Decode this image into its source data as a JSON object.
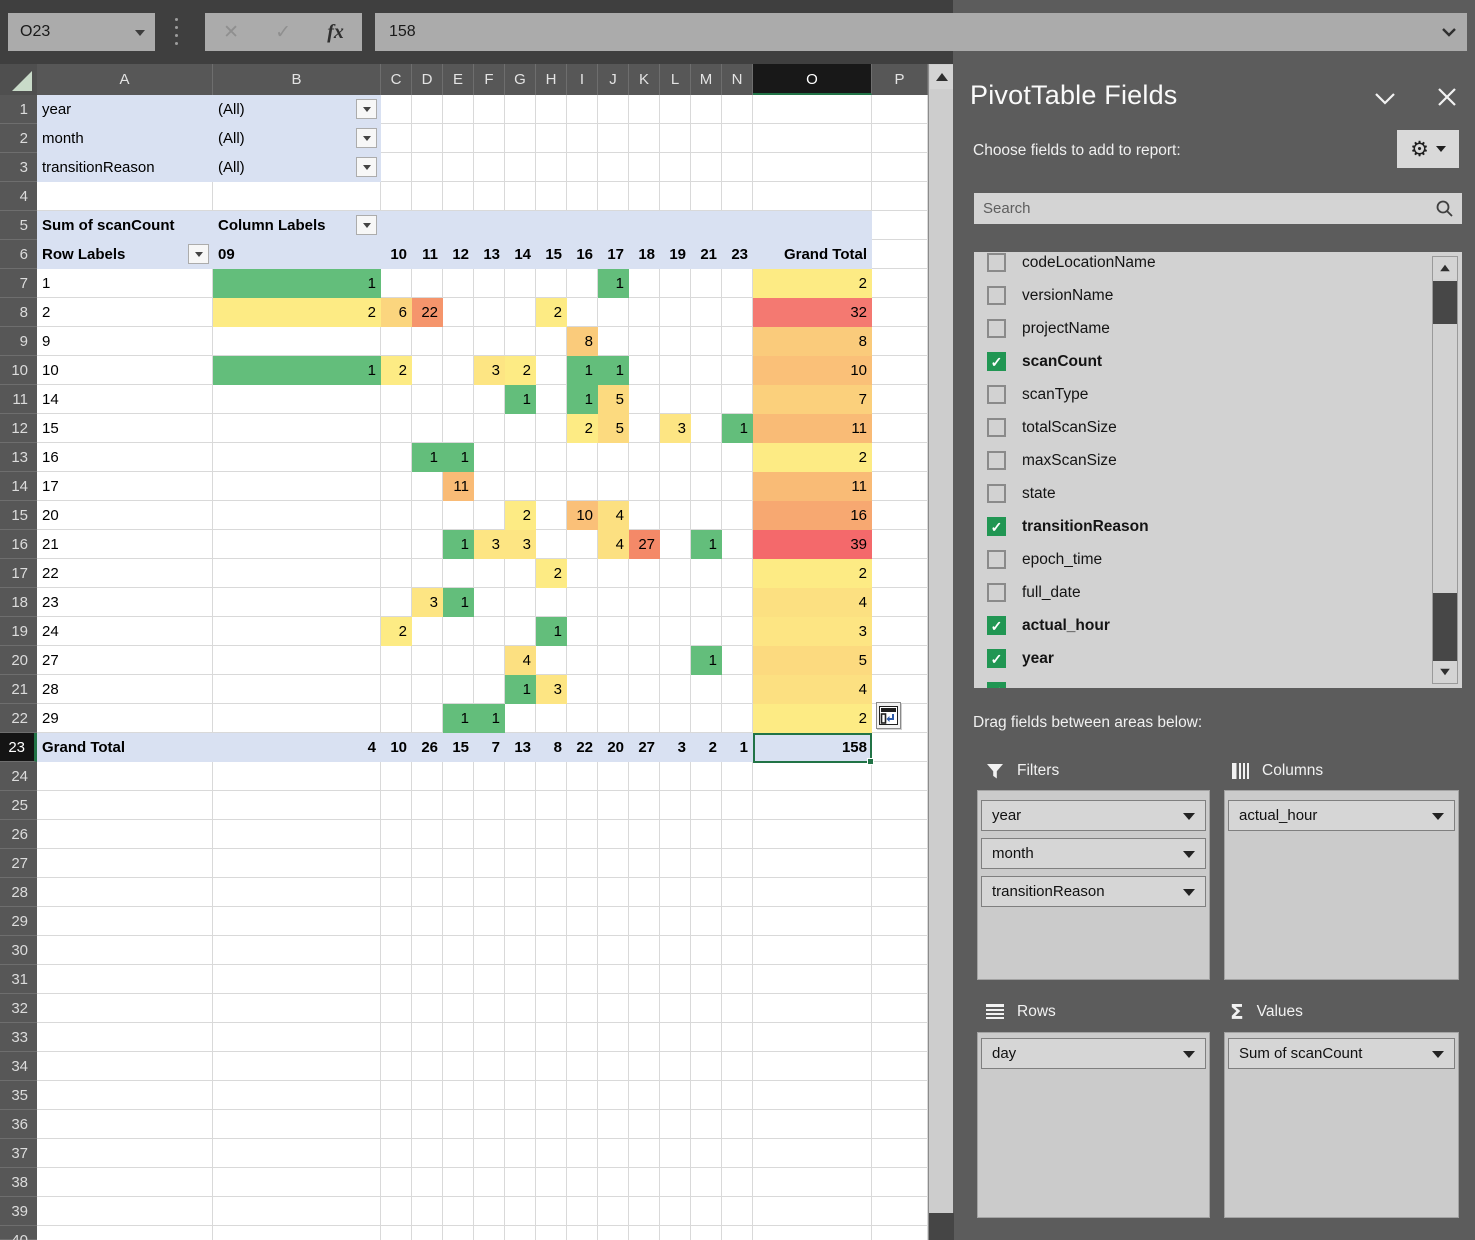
{
  "chrome": {
    "name_box": "O23",
    "formula_value": "158",
    "cancel_glyph": "✕",
    "enter_glyph": "✓",
    "fx_label": "fx"
  },
  "sheet": {
    "col_letters": [
      "A",
      "B",
      "C",
      "D",
      "E",
      "F",
      "G",
      "H",
      "I",
      "J",
      "K",
      "L",
      "M",
      "N",
      "O",
      "P"
    ],
    "selected_col_letter": "O",
    "visible_row_count": 40,
    "selected_row_number": 23,
    "filter_rows": [
      {
        "field": "year",
        "value": "(All)"
      },
      {
        "field": "month",
        "value": "(All)"
      },
      {
        "field": "transitionReason",
        "value": "(All)"
      }
    ],
    "pivot": {
      "measure_label": "Sum of scanCount",
      "column_labels_label": "Column Labels",
      "row_labels_label": "Row Labels",
      "hour_columns": [
        "09",
        "10",
        "11",
        "12",
        "13",
        "14",
        "15",
        "16",
        "17",
        "18",
        "19",
        "21",
        "23"
      ],
      "grand_total_label": "Grand Total",
      "data_rows": [
        {
          "day": "1",
          "cells": [
            [
              0,
              1
            ],
            [
              8,
              1
            ]
          ],
          "total": 2
        },
        {
          "day": "2",
          "cells": [
            [
              0,
              2
            ],
            [
              1,
              6
            ],
            [
              2,
              22
            ],
            [
              6,
              2
            ]
          ],
          "total": 32
        },
        {
          "day": "9",
          "cells": [
            [
              7,
              8
            ]
          ],
          "total": 8
        },
        {
          "day": "10",
          "cells": [
            [
              0,
              1
            ],
            [
              1,
              2
            ],
            [
              4,
              3
            ],
            [
              5,
              2
            ],
            [
              7,
              1
            ],
            [
              8,
              1
            ]
          ],
          "total": 10
        },
        {
          "day": "14",
          "cells": [
            [
              5,
              1
            ],
            [
              7,
              1
            ],
            [
              8,
              5
            ]
          ],
          "total": 7
        },
        {
          "day": "15",
          "cells": [
            [
              7,
              2
            ],
            [
              8,
              5
            ],
            [
              10,
              3
            ],
            [
              12,
              1
            ]
          ],
          "total": 11
        },
        {
          "day": "16",
          "cells": [
            [
              2,
              1
            ],
            [
              3,
              1
            ]
          ],
          "total": 2
        },
        {
          "day": "17",
          "cells": [
            [
              3,
              11
            ]
          ],
          "total": 11
        },
        {
          "day": "20",
          "cells": [
            [
              5,
              2
            ],
            [
              7,
              10
            ],
            [
              8,
              4
            ]
          ],
          "total": 16
        },
        {
          "day": "21",
          "cells": [
            [
              3,
              1
            ],
            [
              4,
              3
            ],
            [
              5,
              3
            ],
            [
              8,
              4
            ],
            [
              9,
              27
            ],
            [
              11,
              1
            ]
          ],
          "total": 39
        },
        {
          "day": "22",
          "cells": [
            [
              6,
              2
            ]
          ],
          "total": 2
        },
        {
          "day": "23",
          "cells": [
            [
              2,
              3
            ],
            [
              3,
              1
            ]
          ],
          "total": 4
        },
        {
          "day": "24",
          "cells": [
            [
              1,
              2
            ],
            [
              6,
              1
            ]
          ],
          "total": 3
        },
        {
          "day": "27",
          "cells": [
            [
              5,
              4
            ],
            [
              11,
              1
            ]
          ],
          "total": 5
        },
        {
          "day": "28",
          "cells": [
            [
              5,
              1
            ],
            [
              6,
              3
            ]
          ],
          "total": 4
        },
        {
          "day": "29",
          "cells": [
            [
              3,
              1
            ],
            [
              4,
              1
            ]
          ],
          "total": 2
        }
      ],
      "grand_total_row": {
        "label": "Grand Total",
        "values": [
          4,
          10,
          26,
          15,
          7,
          13,
          8,
          22,
          20,
          27,
          3,
          2,
          1
        ],
        "total": 158
      }
    },
    "colors": {
      "pivot_header_fill": "#D9E1F2",
      "selection_green": "#217346",
      "value_scale": {
        "1": "#63BE7B",
        "2": "#FDEB84",
        "3": "#FDE583",
        "4": "#FCE081",
        "5": "#FCDA7F",
        "6": "#FBD57E",
        "7": "#FBD07C",
        "8": "#FACB7B",
        "10": "#FAC078",
        "11": "#F9BB76",
        "16": "#F7A871",
        "22": "#F5956C",
        "26": "#F58B69",
        "27": "#F48968",
        "32": "#F47971",
        "39": "#F4696B"
      }
    }
  },
  "panel": {
    "title": "PivotTable Fields",
    "choose_label": "Choose fields to add to report:",
    "search_placeholder": "Search",
    "drag_label": "Drag fields between areas below:",
    "fields": [
      {
        "label": "codeLocationName",
        "checked": false
      },
      {
        "label": "versionName",
        "checked": false
      },
      {
        "label": "projectName",
        "checked": false
      },
      {
        "label": "scanCount",
        "checked": true
      },
      {
        "label": "scanType",
        "checked": false
      },
      {
        "label": "totalScanSize",
        "checked": false
      },
      {
        "label": "maxScanSize",
        "checked": false
      },
      {
        "label": "state",
        "checked": false
      },
      {
        "label": "transitionReason",
        "checked": true
      },
      {
        "label": "epoch_time",
        "checked": false
      },
      {
        "label": "full_date",
        "checked": false
      },
      {
        "label": "actual_hour",
        "checked": true
      },
      {
        "label": "year",
        "checked": true
      },
      {
        "label": "",
        "checked": true
      }
    ],
    "areas": {
      "filters": {
        "label": "Filters",
        "items": [
          "year",
          "month",
          "transitionReason"
        ]
      },
      "columns": {
        "label": "Columns",
        "items": [
          "actual_hour"
        ]
      },
      "rows": {
        "label": "Rows",
        "items": [
          "day"
        ]
      },
      "values": {
        "label": "Values",
        "items": [
          "Sum of scanCount"
        ]
      }
    }
  }
}
